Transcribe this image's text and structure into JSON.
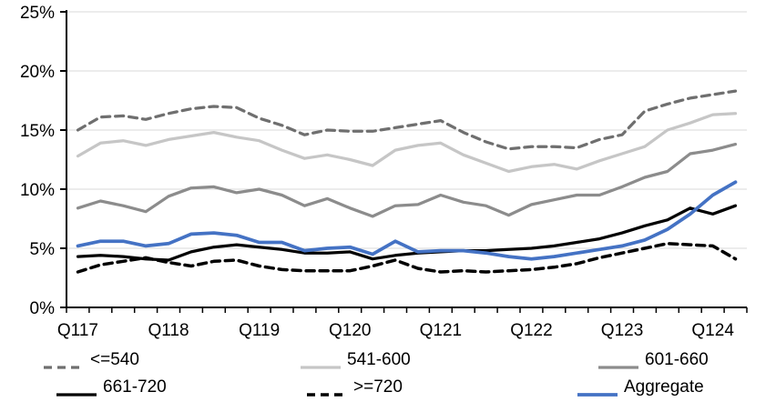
{
  "chart_data": {
    "type": "line",
    "title": "",
    "n_points": 30,
    "x_label_every": 4,
    "x_tick_labels": [
      "Q117",
      "Q118",
      "Q119",
      "Q120",
      "Q121",
      "Q122",
      "Q123",
      "Q124"
    ],
    "y_tick_labels": [
      "0%",
      "5%",
      "10%",
      "15%",
      "20%",
      "25%"
    ],
    "y_tick_values": [
      0,
      5,
      10,
      15,
      20,
      25
    ],
    "ylim": [
      0,
      25
    ],
    "y_unit": "%",
    "grid": true,
    "legend_position": "bottom",
    "series": [
      {
        "name": "<=540",
        "color": "#6F6F6F",
        "style": "dashed",
        "width": 3.25,
        "values": [
          15.0,
          16.1,
          16.2,
          15.9,
          16.4,
          16.8,
          17.0,
          16.9,
          16.0,
          15.4,
          14.6,
          15.0,
          14.9,
          14.9,
          15.2,
          15.5,
          15.8,
          14.8,
          14.0,
          13.4,
          13.6,
          13.6,
          13.5,
          14.2,
          14.6,
          16.6,
          17.2,
          17.7,
          18.0,
          18.3
        ]
      },
      {
        "name": "541-600",
        "color": "#C6C6C6",
        "style": "solid",
        "width": 3.25,
        "values": [
          12.8,
          13.9,
          14.1,
          13.7,
          14.2,
          14.5,
          14.8,
          14.4,
          14.1,
          13.3,
          12.6,
          12.9,
          12.5,
          12.0,
          13.3,
          13.7,
          13.9,
          12.9,
          12.2,
          11.5,
          11.9,
          12.1,
          11.7,
          12.4,
          13.0,
          13.6,
          15.0,
          15.6,
          16.3,
          16.4
        ]
      },
      {
        "name": "601-660",
        "color": "#8C8C8C",
        "style": "solid",
        "width": 3.25,
        "values": [
          8.4,
          9.0,
          8.6,
          8.1,
          9.4,
          10.1,
          10.2,
          9.7,
          10.0,
          9.5,
          8.6,
          9.2,
          8.4,
          7.7,
          8.6,
          8.7,
          9.5,
          8.9,
          8.6,
          7.8,
          8.7,
          9.1,
          9.5,
          9.5,
          10.2,
          11.0,
          11.5,
          13.0,
          13.3,
          13.8
        ]
      },
      {
        "name": "661-720",
        "color": "#000000",
        "style": "solid",
        "width": 3.25,
        "values": [
          4.3,
          4.4,
          4.3,
          4.1,
          4.0,
          4.7,
          5.1,
          5.3,
          5.1,
          4.9,
          4.6,
          4.6,
          4.7,
          4.1,
          4.4,
          4.6,
          4.7,
          4.8,
          4.8,
          4.9,
          5.0,
          5.2,
          5.5,
          5.8,
          6.3,
          6.9,
          7.4,
          8.4,
          7.9,
          8.6
        ]
      },
      {
        "name": ">=720",
        "color": "#000000",
        "style": "dashed",
        "width": 3.5,
        "values": [
          3.0,
          3.6,
          3.9,
          4.2,
          3.8,
          3.5,
          3.9,
          4.0,
          3.5,
          3.2,
          3.1,
          3.1,
          3.1,
          3.5,
          4.0,
          3.3,
          3.0,
          3.1,
          3.0,
          3.1,
          3.2,
          3.4,
          3.7,
          4.2,
          4.6,
          5.0,
          5.4,
          5.3,
          5.2,
          4.1
        ]
      },
      {
        "name": "Aggregate",
        "color": "#4472C4",
        "style": "solid",
        "width": 3.75,
        "values": [
          5.2,
          5.6,
          5.6,
          5.2,
          5.4,
          6.2,
          6.3,
          6.1,
          5.5,
          5.5,
          4.8,
          5.0,
          5.1,
          4.5,
          5.6,
          4.7,
          4.8,
          4.8,
          4.6,
          4.3,
          4.1,
          4.3,
          4.6,
          4.9,
          5.2,
          5.7,
          6.6,
          7.9,
          9.5,
          10.6
        ]
      }
    ]
  },
  "colors": {
    "axis": "#000000",
    "gridline": "#D9D9D9",
    "background": "#FFFFFF"
  }
}
